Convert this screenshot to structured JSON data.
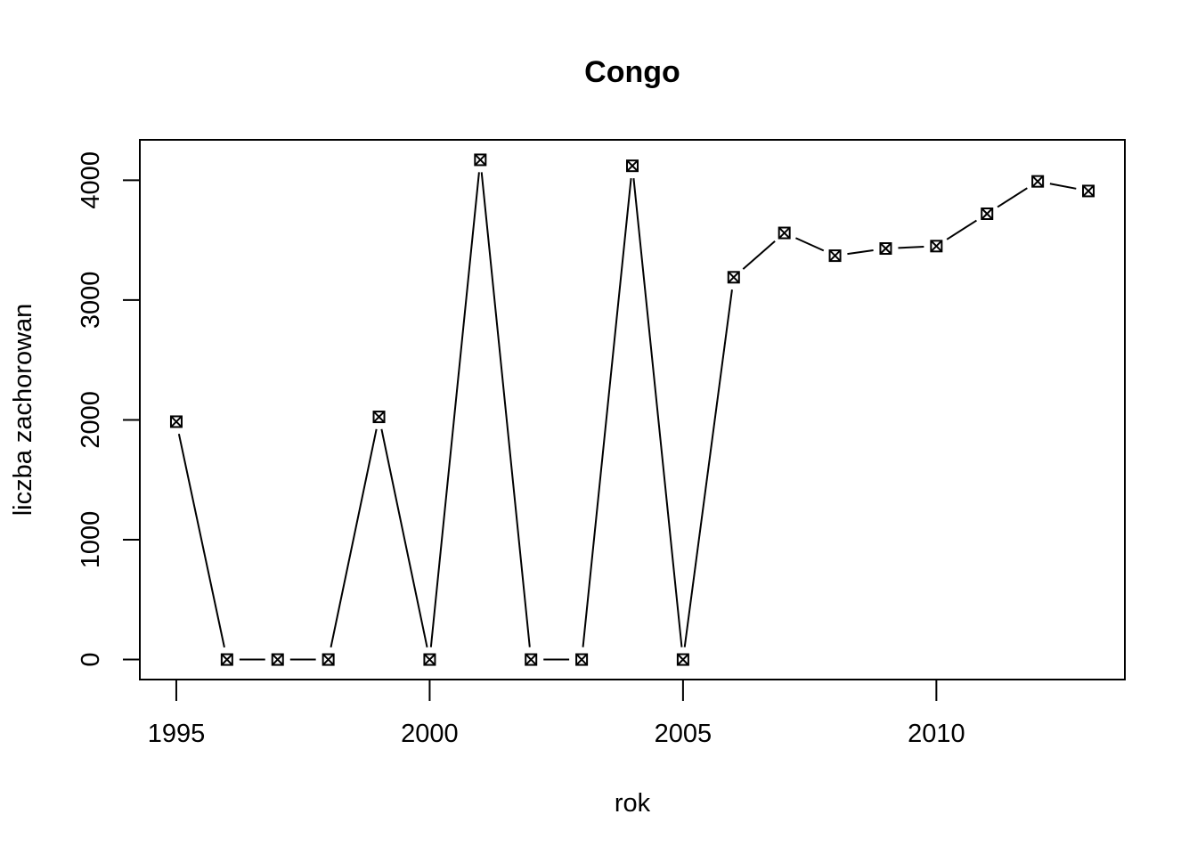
{
  "chart_data": {
    "type": "line",
    "title": "Congo",
    "xlabel": "rok",
    "ylabel": "liczba zachorowan",
    "x": [
      1995,
      1996,
      1997,
      1998,
      1999,
      2000,
      2001,
      2002,
      2003,
      2004,
      2005,
      2006,
      2007,
      2008,
      2009,
      2010,
      2011,
      2012,
      2013
    ],
    "series": [
      {
        "values": [
          1985,
          0,
          0,
          0,
          2025,
          0,
          4170,
          0,
          0,
          4120,
          0,
          3190,
          3560,
          3370,
          3430,
          3450,
          3720,
          3990,
          3910
        ]
      }
    ],
    "xlim": [
      1994.28,
      2013.72
    ],
    "ylim": [
      -166.8,
      4336.8
    ],
    "xticks": [
      1995,
      2000,
      2005,
      2010
    ],
    "yticks": [
      0,
      1000,
      2000,
      3000,
      4000
    ],
    "xtick_labels": [
      "1995",
      "2000",
      "2005",
      "2010"
    ],
    "ytick_labels": [
      "0",
      "1000",
      "2000",
      "3000",
      "4000"
    ],
    "marker": "square-x",
    "line_style": "broken-line-between-points",
    "grid": false,
    "legend": "none",
    "colors": {
      "line": "#000000",
      "background": "#ffffff"
    }
  }
}
